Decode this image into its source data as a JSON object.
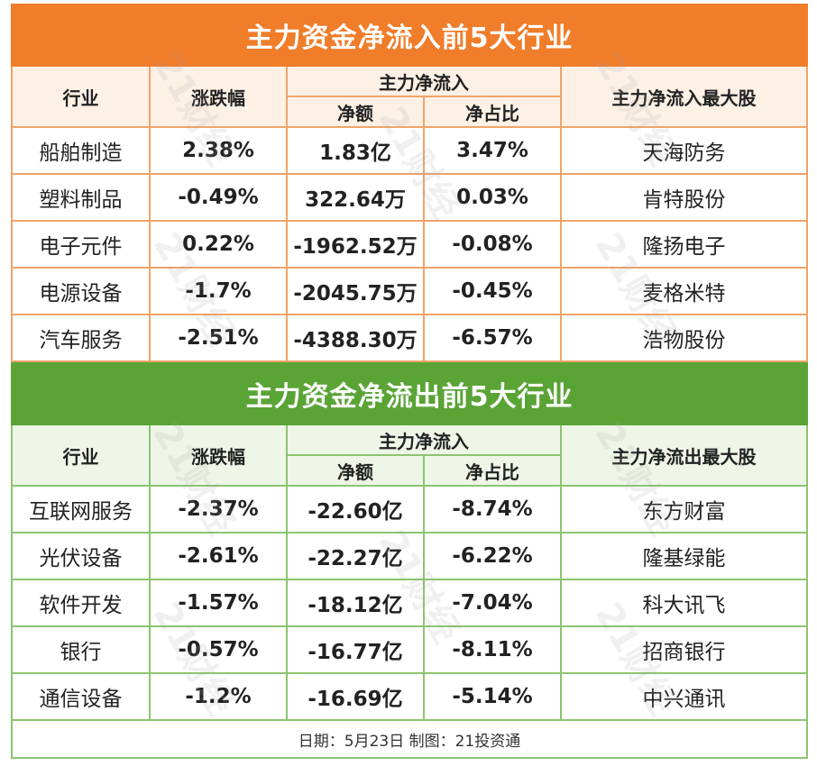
{
  "inflow": {
    "title": "主力资金净流入前5大行业",
    "headers": {
      "industry": "行业",
      "change": "涨跌幅",
      "group": "主力净流入",
      "net_amount": "净额",
      "net_ratio": "净占比",
      "top_stock": "主力净流入最大股"
    },
    "rows": [
      {
        "industry": "船舶制造",
        "change": "2.38%",
        "net_amount": "1.83亿",
        "net_ratio": "3.47%",
        "top_stock": "天海防务"
      },
      {
        "industry": "塑料制品",
        "change": "-0.49%",
        "net_amount": "322.64万",
        "net_ratio": "0.03%",
        "top_stock": "肯特股份"
      },
      {
        "industry": "电子元件",
        "change": "0.22%",
        "net_amount": "-1962.52万",
        "net_ratio": "-0.08%",
        "top_stock": "隆扬电子"
      },
      {
        "industry": "电源设备",
        "change": "-1.7%",
        "net_amount": "-2045.75万",
        "net_ratio": "-0.45%",
        "top_stock": "麦格米特"
      },
      {
        "industry": "汽车服务",
        "change": "-2.51%",
        "net_amount": "-4388.30万",
        "net_ratio": "-6.57%",
        "top_stock": "浩物股份"
      }
    ]
  },
  "outflow": {
    "title": "主力资金净流出前5大行业",
    "headers": {
      "industry": "行业",
      "change": "涨跌幅",
      "group": "主力净流入",
      "net_amount": "净额",
      "net_ratio": "净占比",
      "top_stock": "主力净流出最大股"
    },
    "rows": [
      {
        "industry": "互联网服务",
        "change": "-2.37%",
        "net_amount": "-22.60亿",
        "net_ratio": "-8.74%",
        "top_stock": "东方财富"
      },
      {
        "industry": "光伏设备",
        "change": "-2.61%",
        "net_amount": "-22.27亿",
        "net_ratio": "-6.22%",
        "top_stock": "隆基绿能"
      },
      {
        "industry": "软件开发",
        "change": "-1.57%",
        "net_amount": "-18.12亿",
        "net_ratio": "-7.04%",
        "top_stock": "科大讯飞"
      },
      {
        "industry": "银行",
        "change": "-0.57%",
        "net_amount": "-16.77亿",
        "net_ratio": "-8.11%",
        "top_stock": "招商银行"
      },
      {
        "industry": "通信设备",
        "change": "-1.2%",
        "net_amount": "-16.69亿",
        "net_ratio": "-5.14%",
        "top_stock": "中兴通讯"
      }
    ]
  },
  "footer": "日期：5月23日 制图：21投资通",
  "watermark": "21财经",
  "colors": {
    "inflow_title_bg": "#f07d2a",
    "inflow_border": "#f0a36a",
    "outflow_title_bg": "#5aa436",
    "outflow_border": "#8cc46f"
  }
}
